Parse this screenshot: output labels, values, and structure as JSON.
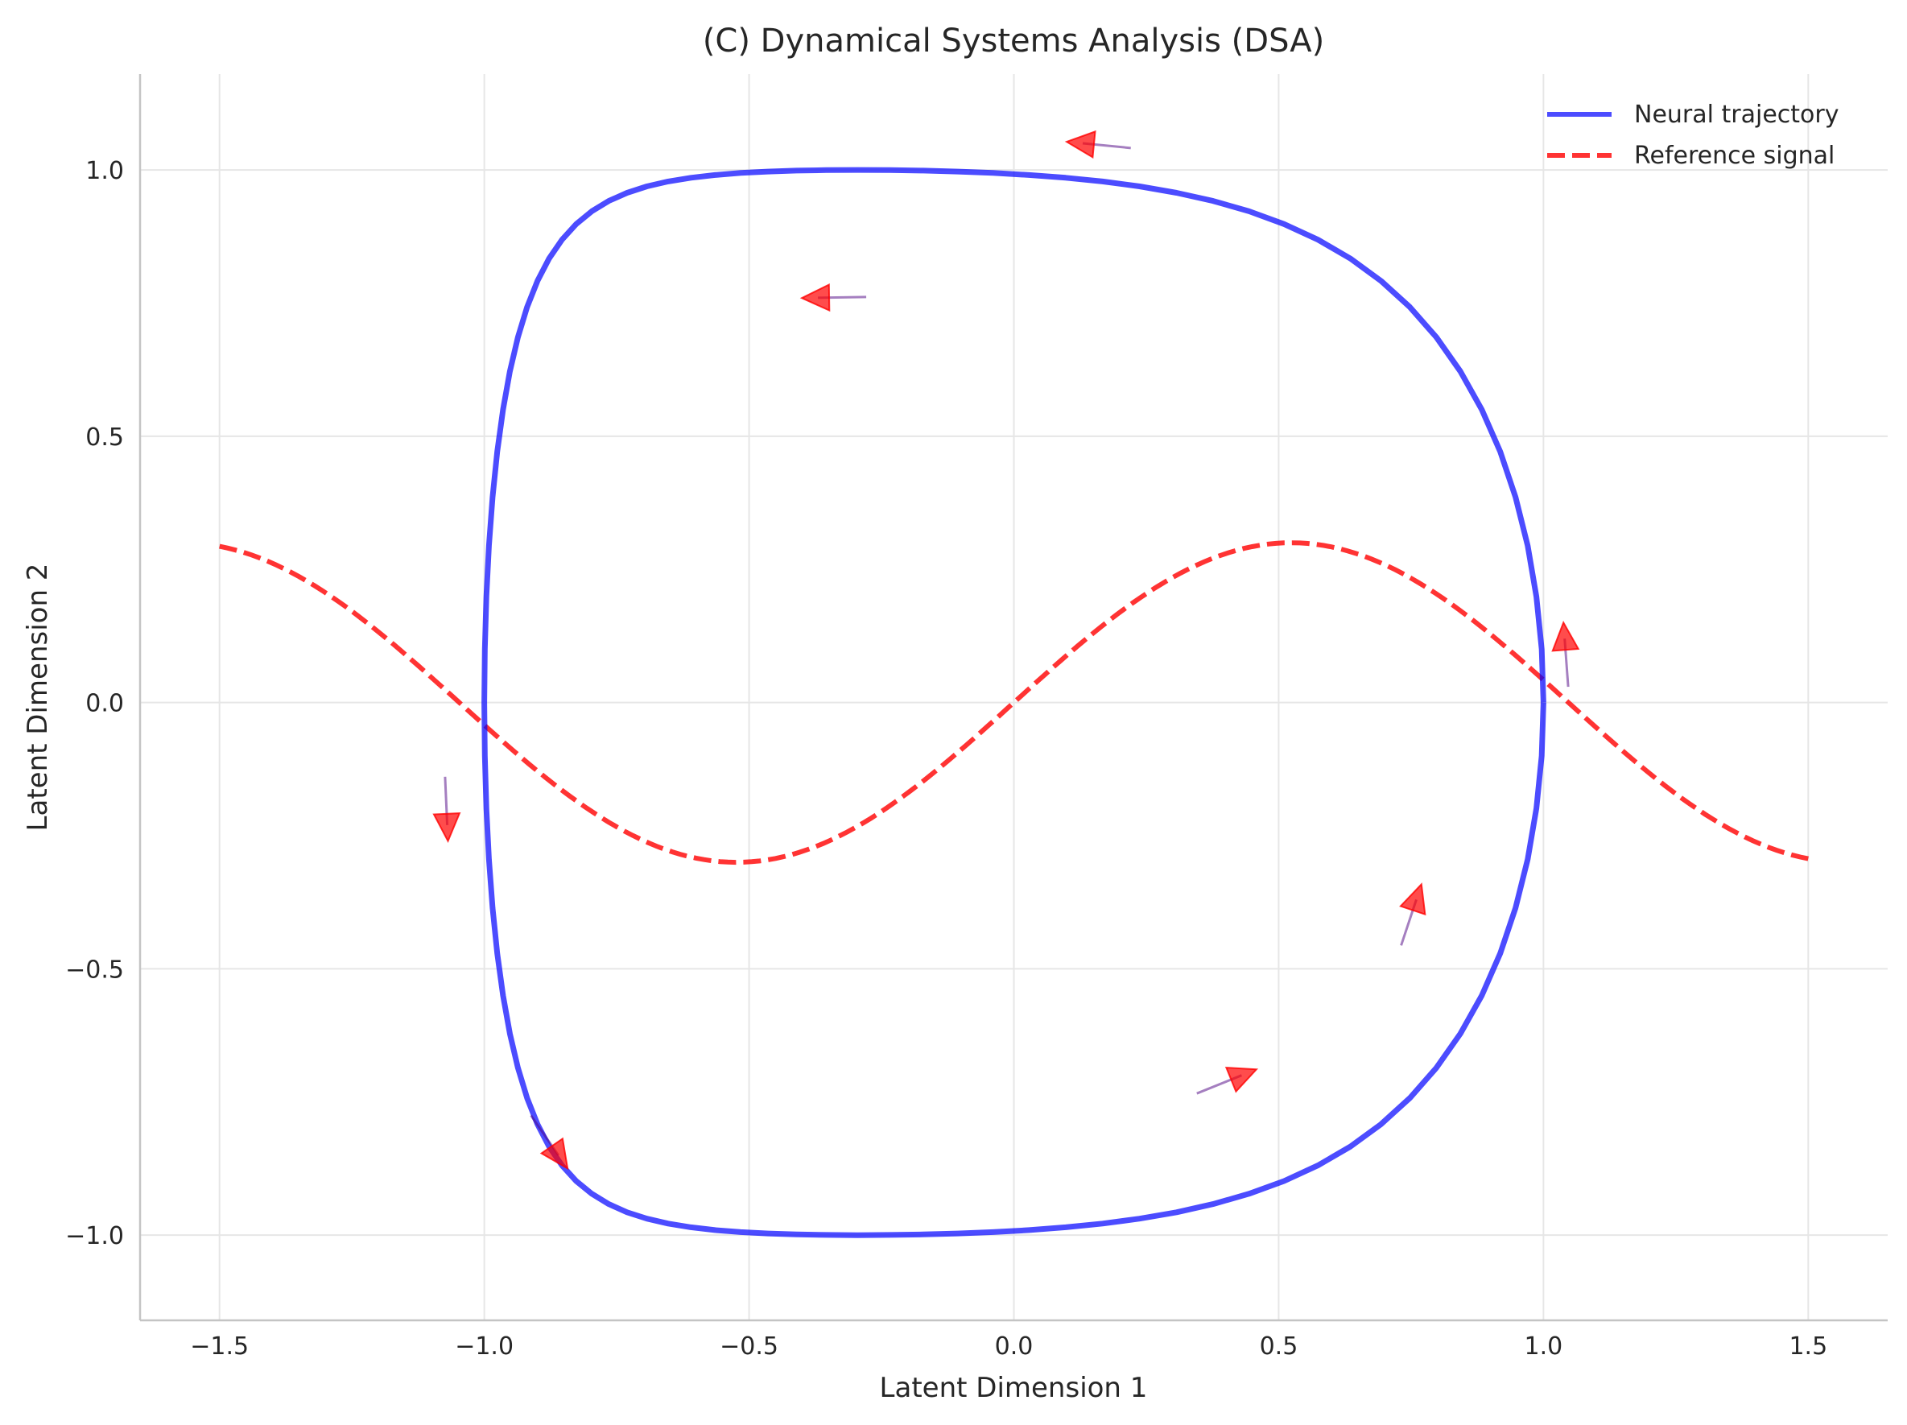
{
  "chart_data": {
    "type": "line",
    "title": "(C) Dynamical Systems Analysis (DSA)",
    "xlabel": "Latent Dimension 1",
    "ylabel": "Latent Dimension 2",
    "xlim": [
      -1.65,
      1.65
    ],
    "ylim": [
      -1.16,
      1.18
    ],
    "xticks": [
      -1.5,
      -1.0,
      -0.5,
      0.0,
      0.5,
      1.0,
      1.5
    ],
    "yticks": [
      -1.0,
      -0.5,
      0.0,
      0.5,
      1.0
    ],
    "xtick_labels": [
      "−1.5",
      "−1.0",
      "−0.5",
      "0.0",
      "0.5",
      "1.0",
      "1.5"
    ],
    "ytick_labels": [
      "−1.0",
      "−0.5",
      "0.0",
      "0.5",
      "1.0"
    ],
    "grid": true,
    "legend_position": "top-right",
    "series": [
      {
        "name": "Neural trajectory",
        "color": "#0000ff",
        "style": "solid",
        "opacity": 0.7,
        "description": "closed loop: x = cos(t + 0.3*sin t), y = sin(t + 0.3*sin(2t))"
      },
      {
        "name": "Reference signal",
        "color": "#ff0000",
        "style": "dashed",
        "opacity": 0.8,
        "x_range": [
          -1.5,
          1.5
        ],
        "amplitude": 0.3,
        "description": "y = 0.3 * sin(3x)"
      }
    ],
    "arrows": {
      "color": "#ff0000",
      "opacity": 0.7,
      "points": [
        {
          "x": 1.04,
          "y": 0.12
        },
        {
          "x": 0.13,
          "y": 1.05
        },
        {
          "x": -0.37,
          "y": 0.76
        },
        {
          "x": -1.07,
          "y": -0.23
        },
        {
          "x": -0.86,
          "y": -0.85
        },
        {
          "x": 0.43,
          "y": -0.7
        },
        {
          "x": 0.76,
          "y": -0.37
        }
      ]
    }
  }
}
